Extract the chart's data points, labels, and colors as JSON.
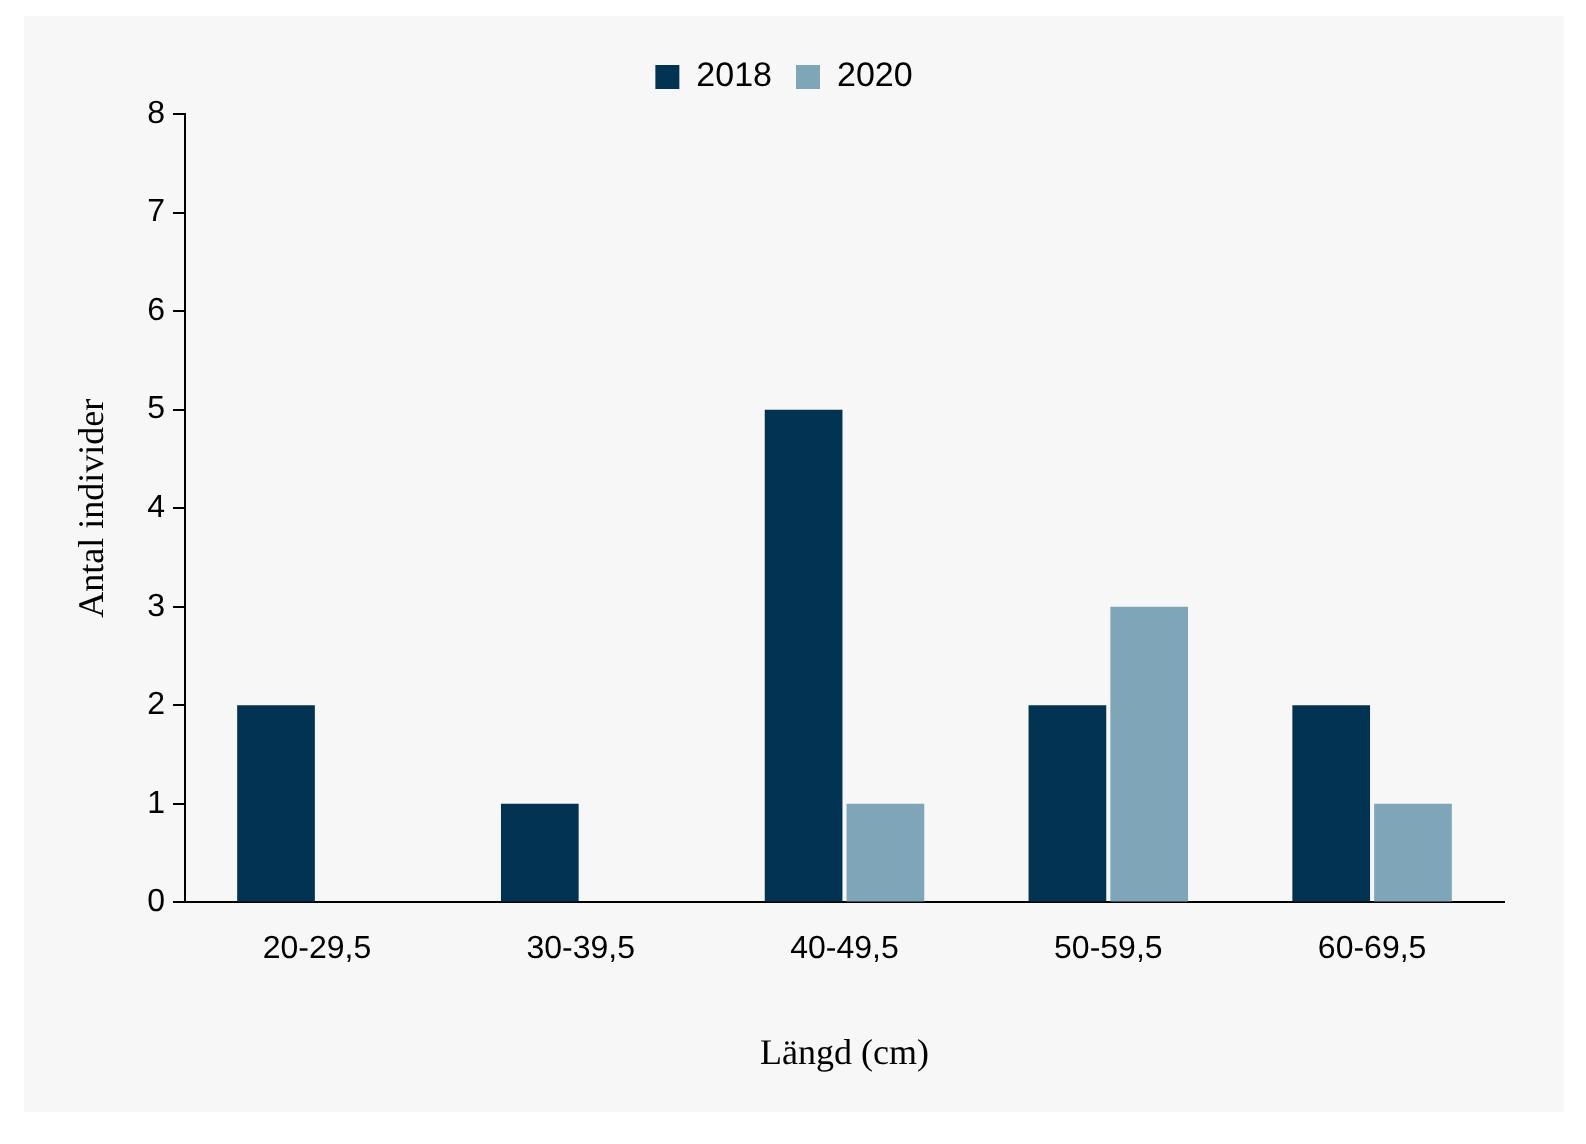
{
  "chart_data": {
    "type": "bar",
    "xlabel": "Längd (cm)",
    "ylabel": "Antal individer",
    "categories": [
      "20-29,5",
      "30-39,5",
      "40-49,5",
      "50-59,5",
      "60-69,5"
    ],
    "series": [
      {
        "name": "2018",
        "color": "#023352",
        "values": [
          2,
          1,
          5,
          2,
          2
        ]
      },
      {
        "name": "2020",
        "color": "#7ea6b8",
        "values": [
          0,
          0,
          1,
          3,
          1
        ]
      }
    ],
    "ylim": [
      0,
      8
    ],
    "yticks": [
      0,
      1,
      2,
      3,
      4,
      5,
      6,
      7,
      8
    ],
    "grid": false,
    "legend": "top"
  }
}
